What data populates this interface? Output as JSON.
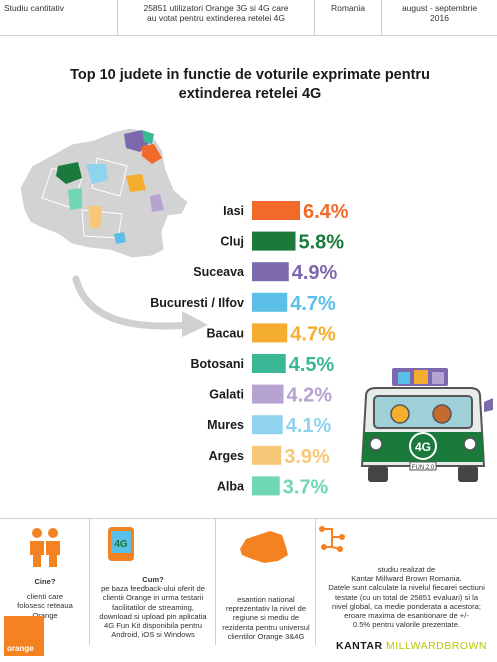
{
  "header": {
    "type": "Studiu cantitativ",
    "sample_line1": "25851  utilizatori Orange 3G si 4G care",
    "sample_line2": "au votat pentru extinderea retelei 4G",
    "country": "Romania",
    "period_line1": "august - septembrie",
    "period_line2": "2016"
  },
  "chart_data": {
    "type": "bar",
    "orientation": "horizontal",
    "title_line1": "Top 10 judete in functie de voturile exprimate pentru",
    "title_line2": "extinderea retelei 4G",
    "categories": [
      "Iasi",
      "Cluj",
      "Suceava",
      "Bucuresti / Ilfov",
      "Bacau",
      "Botosani",
      "Galati",
      "Mures",
      "Arges",
      "Alba"
    ],
    "values": [
      6.4,
      5.8,
      4.9,
      4.7,
      4.7,
      4.5,
      4.2,
      4.1,
      3.9,
      3.7
    ],
    "value_labels": [
      "6.4%",
      "5.8%",
      "4.9%",
      "4.7%",
      "4.7%",
      "4.5%",
      "4.2%",
      "4.1%",
      "3.9%",
      "3.7%"
    ],
    "unit": "%",
    "colors": [
      "#f26a2a",
      "#1a7a3c",
      "#7b68ad",
      "#5bbfe8",
      "#f4ad2e",
      "#3ab795",
      "#b6a3d2",
      "#8fd3ef",
      "#f8c777",
      "#6fd6b6"
    ]
  },
  "van": {
    "badge": "4G",
    "plate": "FUN 2.0"
  },
  "footer": {
    "who_q": "Cine?",
    "who_line1": "clienti care",
    "who_line2": "folosesc reteaua",
    "who_line3": "Orange",
    "how_q": "Cum?",
    "how_line1": "pe baza feedback-ului oferit de",
    "how_line2": "clientii Orange in urma testarii",
    "how_line3": "facilitatilor de streaming,",
    "how_line4": "download  si upload pin aplicatia",
    "how_line5": "4G Fun Kit disponibila pentru",
    "how_line6": "Android, iOS si Windows",
    "how_icon_text": "4G",
    "sample_line1": "esantion national",
    "sample_line2": "reprezentativ la nivel de",
    "sample_line3": "regiune si mediu de",
    "sample_line4": "rezidenta pentru universul",
    "sample_line5": "clientilor Orange 3&4G",
    "study_line1": "studiu realizat de",
    "study_line2": "Kantar Millward Brown Romania.",
    "study_line3": "Datele sunt calculate la nivelul fiecarei sectiuni",
    "study_line4": "testate (cu un total de 25851 evaluari) si la",
    "study_line5": "nivel global, ca medie ponderata a acestora;",
    "study_line6": "eroare maxima de esantionare de +/-",
    "study_line7": "0.5% pentru valorile prezentate.",
    "orange_logo": "orange",
    "kantar_1": "KANTAR",
    "kantar_2": "MILLWARDBROWN"
  },
  "icons": {
    "people": "people-icon",
    "phone": "phone-4g-icon",
    "map": "romania-map-icon",
    "network": "network-icon"
  }
}
